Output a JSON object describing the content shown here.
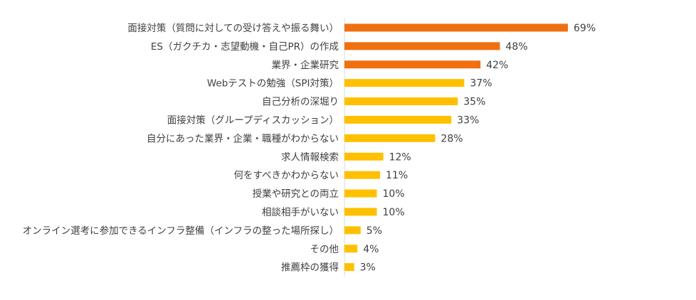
{
  "chart_data": {
    "type": "bar",
    "orientation": "horizontal",
    "title": "",
    "xlabel": "",
    "ylabel": "",
    "xlim": [
      0,
      100
    ],
    "grid": false,
    "legend": "none",
    "value_suffix": "%",
    "colors": {
      "highlight": "#f07010",
      "default": "#ffc000",
      "axis": "#d9d9d9"
    },
    "categories": [
      "面接対策（質問に対しての受け答えや振る舞い）",
      "ES（ガクチカ・志望動機・自己PR）の作成",
      "業界・企業研究",
      "Webテストの勉強（SPI対策）",
      "自己分析の深堀り",
      "面接対策（グループディスカッション）",
      "自分にあった業界・企業・職種がわからない",
      "求人情報検索",
      "何をすべきかわからない",
      "授業や研究との両立",
      "相談相手がいない",
      "オンライン選考に参加できるインフラ整備（インフラの整った場所探し）",
      "その他",
      "推薦枠の獲得"
    ],
    "values": [
      69,
      48,
      42,
      37,
      35,
      33,
      28,
      12,
      11,
      10,
      10,
      5,
      4,
      3
    ],
    "highlighted": [
      true,
      true,
      true,
      false,
      false,
      false,
      false,
      false,
      false,
      false,
      false,
      false,
      false,
      false
    ]
  }
}
